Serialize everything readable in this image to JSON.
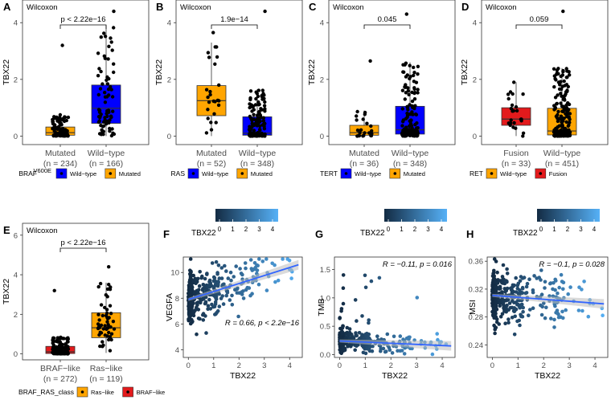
{
  "colors": {
    "blue": "#0000ff",
    "orange": "#ffa500",
    "red": "#e31a1c",
    "dot": "#000000",
    "cmap_low": "#132b43",
    "cmap_high": "#56b1f7",
    "fit": "#3366ff",
    "band": "#bbbbbb"
  },
  "chart_data": [
    {
      "id": "A",
      "type": "box",
      "label": "A",
      "method": "Wilcoxon",
      "ylabel": "TBX22",
      "ylim": [
        -0.3,
        4.8
      ],
      "yticks": [
        "0",
        "2",
        "4"
      ],
      "groups": [
        {
          "name": "Mutated",
          "n": "(n = 234)",
          "color": "orange",
          "q1": 0.03,
          "median": 0.12,
          "q3": 0.32,
          "whisker_low": 0,
          "whisker_high": 0.75,
          "max": 3.2
        },
        {
          "name": "Wild−type",
          "n": "(n = 166)",
          "color": "blue",
          "q1": 0.45,
          "median": 0.98,
          "q3": 1.8,
          "whisker_low": 0,
          "whisker_high": 3.9,
          "max": 4.4
        }
      ],
      "pvalue": "p < 2.22e−16",
      "legend": {
        "title": "BRAF",
        "title_sup": "V600E",
        "items": [
          {
            "label": "Wild−type",
            "color": "blue"
          },
          {
            "label": "Mutated",
            "color": "orange"
          }
        ]
      }
    },
    {
      "id": "B",
      "type": "box",
      "label": "B",
      "method": "Wilcoxon",
      "ylabel": "TBX22",
      "ylim": [
        -0.3,
        4.8
      ],
      "yticks": [
        "0",
        "2",
        "4"
      ],
      "groups": [
        {
          "name": "Mutated",
          "n": "(n = 52)",
          "color": "orange",
          "q1": 0.72,
          "median": 1.25,
          "q3": 1.78,
          "whisker_low": 0.0,
          "whisker_high": 3.3,
          "max": 3.65
        },
        {
          "name": "Wild−type",
          "n": "(n = 348)",
          "color": "blue",
          "q1": 0.03,
          "median": 0.1,
          "q3": 0.68,
          "whisker_low": 0,
          "whisker_high": 1.65,
          "max": 4.4
        }
      ],
      "pvalue": "1.9e−14",
      "legend": {
        "title": "RAS",
        "items": [
          {
            "label": "Wild−type",
            "color": "blue"
          },
          {
            "label": "Mutated",
            "color": "orange"
          }
        ]
      }
    },
    {
      "id": "C",
      "type": "box",
      "label": "C",
      "method": "Wilcoxon",
      "ylabel": "TBX22",
      "ylim": [
        -0.3,
        4.8
      ],
      "yticks": [
        "0",
        "2",
        "4"
      ],
      "groups": [
        {
          "name": "Mutated",
          "n": "(n = 36)",
          "color": "orange",
          "q1": 0.03,
          "median": 0.12,
          "q3": 0.38,
          "whisker_low": 0,
          "whisker_high": 0.9,
          "max": 2.65
        },
        {
          "name": "Wild−type",
          "n": "(n = 348)",
          "color": "blue",
          "q1": 0.07,
          "median": 0.22,
          "q3": 1.05,
          "whisker_low": 0,
          "whisker_high": 2.6,
          "max": 4.3
        }
      ],
      "pvalue": "0.045",
      "legend": {
        "title": "TERT",
        "items": [
          {
            "label": "Wild−type",
            "color": "blue"
          },
          {
            "label": "Mutated",
            "color": "orange"
          }
        ]
      }
    },
    {
      "id": "D",
      "type": "box",
      "label": "D",
      "method": "Wilcoxon",
      "ylabel": "TBX22",
      "ylim": [
        -0.3,
        4.8
      ],
      "yticks": [
        "0",
        "2",
        "4"
      ],
      "groups": [
        {
          "name": "Fusion",
          "n": "(n = 33)",
          "color": "red",
          "q1": 0.38,
          "median": 0.6,
          "q3": 1.0,
          "whisker_low": 0,
          "whisker_high": 1.9,
          "max": 1.9
        },
        {
          "name": "Wild−type",
          "n": "(n = 451)",
          "color": "orange",
          "q1": 0.04,
          "median": 0.18,
          "q3": 0.98,
          "whisker_low": 0,
          "whisker_high": 2.4,
          "max": 4.4
        }
      ],
      "pvalue": "0.059",
      "legend": {
        "title": "RET",
        "items": [
          {
            "label": "Wild−type",
            "color": "orange"
          },
          {
            "label": "Fusion",
            "color": "red"
          }
        ]
      }
    },
    {
      "id": "E",
      "type": "box",
      "label": "E",
      "method": "Wilcoxon",
      "ylabel": "TBX22",
      "ylim": [
        -0.3,
        6.6
      ],
      "yticks": [
        "0",
        "2",
        "4",
        "6"
      ],
      "groups": [
        {
          "name": "BRAF−like",
          "n": "(n = 272)",
          "color": "red",
          "q1": 0.02,
          "median": 0.1,
          "q3": 0.38,
          "whisker_low": 0,
          "whisker_high": 0.85,
          "max": 3.2
        },
        {
          "name": "Ras−like",
          "n": "(n = 119)",
          "color": "orange",
          "q1": 0.82,
          "median": 1.32,
          "q3": 2.08,
          "whisker_low": 0.05,
          "whisker_high": 3.6,
          "max": 4.4
        }
      ],
      "pvalue": "p < 2.22e−16",
      "legend": {
        "title": "BRAF_RAS_class",
        "items": [
          {
            "label": "Ras−like",
            "color": "orange"
          },
          {
            "label": "BRAF−like",
            "color": "red"
          }
        ]
      }
    },
    {
      "id": "F",
      "type": "scatter",
      "label": "F",
      "xlabel": "TBX22",
      "ylabel": "VEGFA",
      "xlim": [
        -0.2,
        4.5
      ],
      "ylim": [
        3.4,
        11.2
      ],
      "xticks": [
        0,
        1,
        2,
        3,
        4
      ],
      "yticks": [
        4,
        6,
        8,
        10
      ],
      "fit": {
        "intercept": 7.9,
        "slope": 0.62
      },
      "n_points": 400,
      "mean_y0": 8.3,
      "sd": 0.9,
      "annotation": "R = 0.66, p < 2.2e−16",
      "annotation_pos": "bottom-right",
      "colorbar": {
        "title": "TBX22",
        "ticks": [
          "0",
          "1",
          "2",
          "3",
          "4"
        ]
      }
    },
    {
      "id": "G",
      "type": "scatter",
      "label": "G",
      "xlabel": "TBX22",
      "ylabel": "TMB",
      "xlim": [
        -0.2,
        4.5
      ],
      "ylim": [
        -0.05,
        1.72
      ],
      "xticks": [
        0,
        1,
        2,
        3,
        4
      ],
      "yticks": [
        0.0,
        0.5,
        1.0,
        1.5
      ],
      "fit": {
        "intercept": 0.24,
        "slope": -0.02
      },
      "n_points": 400,
      "mean_y0": 0.22,
      "sd": 0.12,
      "annotation": "R = −0.11, p = 0.016",
      "annotation_pos": "top-right",
      "colorbar": {
        "title": "TBX22",
        "ticks": [
          "0",
          "1",
          "2",
          "3",
          "4"
        ]
      }
    },
    {
      "id": "H",
      "type": "scatter",
      "label": "H",
      "xlabel": "TBX22",
      "ylabel": "MSI",
      "xlim": [
        -0.2,
        4.5
      ],
      "ylim": [
        0.222,
        0.366
      ],
      "xticks": [
        0,
        1,
        2,
        3,
        4
      ],
      "yticks": [
        0.24,
        0.28,
        0.32,
        0.36
      ],
      "fit": {
        "intercept": 0.311,
        "slope": -0.0028
      },
      "n_points": 400,
      "mean_y0": 0.31,
      "sd": 0.018,
      "annotation": "R = −0.1, p = 0.028",
      "annotation_pos": "top-right",
      "colorbar": {
        "title": "TBX22",
        "ticks": [
          "0",
          "1",
          "2",
          "3",
          "4"
        ]
      }
    }
  ]
}
